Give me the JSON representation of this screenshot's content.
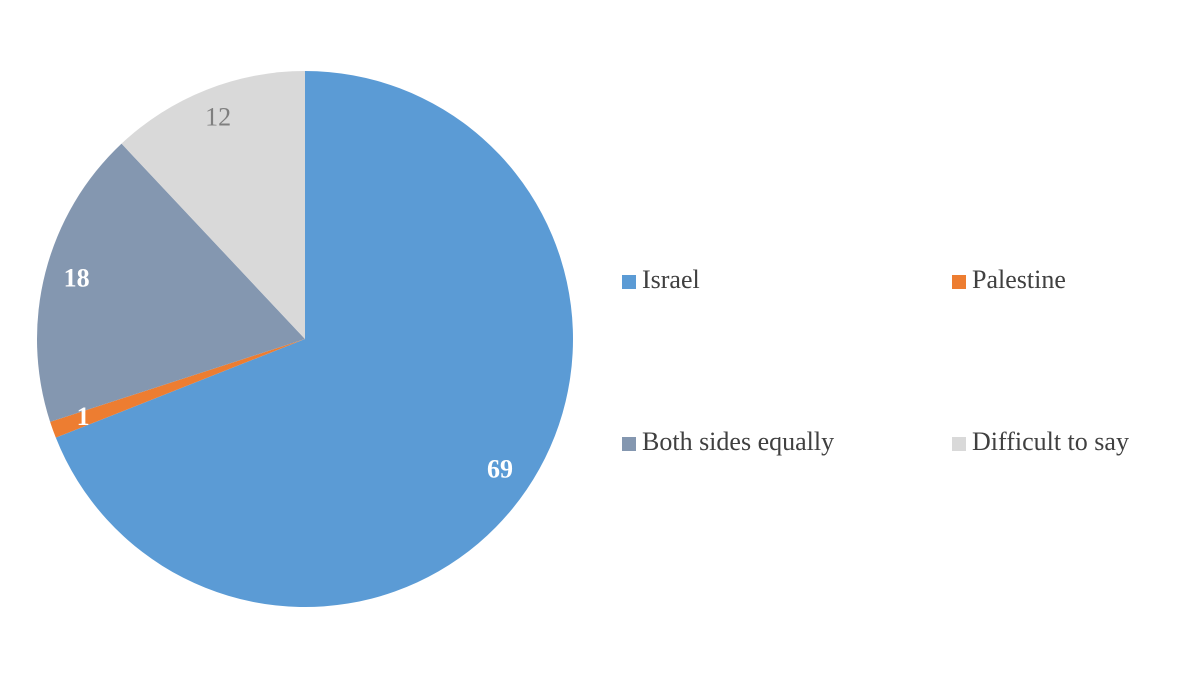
{
  "chart_data": {
    "type": "pie",
    "categories": [
      "Israel",
      "Palestine",
      "Both sides equally",
      "Difficult to say"
    ],
    "values": [
      69,
      1,
      18,
      12
    ],
    "colors": [
      "#5b9bd5",
      "#ed7d31",
      "#8497b0",
      "#d9d9d9"
    ],
    "label_colors": [
      "#ffffff",
      "#ffffff",
      "#ffffff",
      "#7f7f7f"
    ],
    "legend": "right"
  }
}
